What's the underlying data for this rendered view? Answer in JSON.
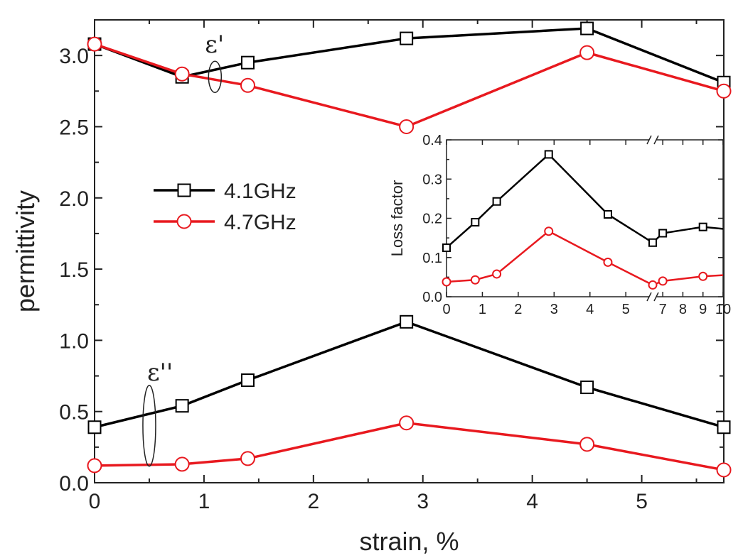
{
  "chart_data": [
    {
      "type": "line",
      "xlabel": "strain, %",
      "ylabel": "permittivity",
      "xlim": [
        0,
        5.75
      ],
      "ylim": [
        0,
        3.25
      ],
      "xticks": [
        "0",
        "1",
        "2",
        "3",
        "4",
        "5"
      ],
      "yticks": [
        "0.0",
        "0.5",
        "1.0",
        "1.5",
        "2.0",
        "2.5",
        "3.0"
      ],
      "legend_position": "center-left",
      "series": [
        {
          "name": "4.1GHz",
          "group": "real",
          "color": "#000000",
          "marker": "square",
          "x": [
            0,
            0.8,
            1.4,
            2.85,
            4.5,
            5.75
          ],
          "y": [
            3.08,
            2.85,
            2.95,
            3.12,
            3.19,
            2.81
          ]
        },
        {
          "name": "4.7GHz",
          "group": "real",
          "color": "#e8191f",
          "marker": "circle",
          "x": [
            0,
            0.8,
            1.4,
            2.85,
            4.5,
            5.75
          ],
          "y": [
            3.08,
            2.87,
            2.79,
            2.5,
            3.02,
            2.75
          ]
        },
        {
          "name": "4.1GHz",
          "group": "imag",
          "color": "#000000",
          "marker": "square",
          "x": [
            0,
            0.8,
            1.4,
            2.85,
            4.5,
            5.75
          ],
          "y": [
            0.39,
            0.54,
            0.72,
            1.13,
            0.67,
            0.39
          ]
        },
        {
          "name": "4.7GHz",
          "group": "imag",
          "color": "#e8191f",
          "marker": "circle",
          "x": [
            0,
            0.8,
            1.4,
            2.85,
            4.5,
            5.75
          ],
          "y": [
            0.12,
            0.13,
            0.17,
            0.42,
            0.27,
            0.09
          ]
        }
      ],
      "annotations": [
        {
          "text": "ε'",
          "x": 1.1,
          "y": 2.85
        },
        {
          "text": "ε''",
          "x": 0.5,
          "y": 0.4
        }
      ]
    },
    {
      "type": "line",
      "inset": true,
      "ylabel": "Loss factor",
      "xlabel": "",
      "ylim": [
        0,
        0.4
      ],
      "yticks": [
        "0.0",
        "0.1",
        "0.2",
        "0.3",
        "0.4"
      ],
      "xticks": [
        "0",
        "1",
        "2",
        "3",
        "4",
        "5",
        "7",
        "8",
        "9",
        "10"
      ],
      "axis_break_between": [
        5.75,
        6.5
      ],
      "series": [
        {
          "name": "4.1GHz",
          "color": "#000000",
          "marker": "square",
          "x": [
            0,
            0.8,
            1.4,
            2.85,
            4.5,
            5.75,
            7,
            9,
            10
          ],
          "y": [
            0.125,
            0.19,
            0.243,
            0.363,
            0.21,
            0.138,
            0.162,
            0.178,
            0.173
          ]
        },
        {
          "name": "4.7GHz",
          "color": "#e8191f",
          "marker": "circle",
          "x": [
            0,
            0.8,
            1.4,
            2.85,
            4.5,
            5.75,
            7,
            9,
            10
          ],
          "y": [
            0.038,
            0.043,
            0.058,
            0.167,
            0.088,
            0.03,
            0.04,
            0.052,
            0.055
          ]
        }
      ]
    }
  ]
}
